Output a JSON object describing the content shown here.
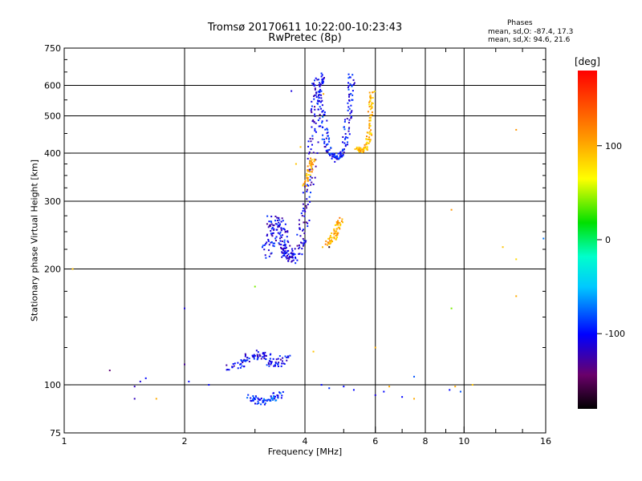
{
  "chart_data": {
    "type": "scatter",
    "title": "Tromsø 20170611 10:22:00-10:23:43",
    "subtitle": "RwPretec (8p)",
    "xlabel": "Frequency [MHz]",
    "ylabel": "Stationary phase Virtual Height [km]",
    "x_scale": "log",
    "y_scale": "log",
    "xlim": [
      1,
      16
    ],
    "ylim": [
      75,
      750
    ],
    "x_ticks": [
      1,
      2,
      4,
      6,
      8,
      10,
      16
    ],
    "x_tick_labels": [
      "1",
      "2",
      "4",
      "6",
      "8",
      "10",
      "16"
    ],
    "x_minor_ticks": [
      3,
      5,
      7,
      9,
      12,
      14
    ],
    "y_ticks": [
      75,
      100,
      200,
      300,
      400,
      500,
      600,
      750
    ],
    "y_tick_labels": [
      "75",
      "100",
      "200",
      "300",
      "400",
      "500",
      "600",
      "750"
    ],
    "grid_x": [
      2,
      4,
      6,
      8,
      10
    ],
    "grid_y": [
      100,
      200,
      300,
      400,
      500,
      600
    ],
    "grid": true,
    "colorbar": {
      "label": "[deg]",
      "range": [
        -180,
        180
      ],
      "ticks": [
        100,
        0,
        -100
      ],
      "tick_labels": [
        "100",
        "0",
        "-100"
      ]
    },
    "stats": {
      "header": "Phases",
      "line_o": "mean, sd,O:  -87.4, 17.3",
      "line_x": "mean, sd,X:  94.6, 21.6"
    },
    "colors": {
      "o_mode": "#1a3fe6",
      "x_mode": "#f2a800"
    },
    "series": [
      {
        "traces": [
          {
            "f": [
              3.3,
              3.5,
              3.7,
              3.9,
              4.0,
              4.1,
              4.2,
              4.25,
              4.3,
              4.35
            ],
            "h": [
              270,
              230,
              210,
              230,
              270,
              330,
              420,
              520,
              600,
              640
            ],
            "phase": -110,
            "spread": 0.06
          },
          {
            "f": [
              3.2,
              3.3,
              3.4,
              3.5,
              3.6,
              3.7
            ],
            "h": [
              215,
              245,
              270,
              250,
              225,
              210
            ],
            "phase": -105,
            "spread": 0.07
          },
          {
            "f": [
              4.3,
              4.4,
              4.5,
              4.6,
              4.8,
              5.0,
              5.1,
              5.2,
              5.25
            ],
            "h": [
              600,
              520,
              440,
              400,
              385,
              400,
              470,
              560,
              640
            ],
            "phase": -100,
            "spread": 0.04
          },
          {
            "f": [
              5.4,
              5.55,
              5.7,
              5.8,
              5.85,
              5.9
            ],
            "h": [
              410,
              405,
              415,
              450,
              520,
              580
            ],
            "phase": 95,
            "spread": 0.03
          },
          {
            "f": [
              4.5,
              4.7,
              4.8,
              4.9
            ],
            "h": [
              230,
              240,
              255,
              270
            ],
            "phase": 100,
            "spread": 0.04
          },
          {
            "f": [
              4.0,
              4.1,
              4.2
            ],
            "h": [
              330,
              360,
              390
            ],
            "phase": 100,
            "spread": 0.03
          },
          {
            "f": [
              2.6,
              2.8,
              3.0,
              3.2,
              3.4,
              3.6
            ],
            "h": [
              110,
              115,
              120,
              118,
              112,
              120
            ],
            "phase": -105,
            "spread": 0.06
          },
          {
            "f": [
              2.9,
              3.1,
              3.3,
              3.5
            ],
            "h": [
              93,
              90,
              92,
              95
            ],
            "phase": -90,
            "spread": 0.05
          }
        ],
        "scatter": [
          {
            "f": 1.05,
            "h": 200,
            "phase": 90
          },
          {
            "f": 1.3,
            "h": 109,
            "phase": -140
          },
          {
            "f": 1.5,
            "h": 99,
            "phase": -120
          },
          {
            "f": 1.55,
            "h": 102,
            "phase": -110
          },
          {
            "f": 1.6,
            "h": 104,
            "phase": -100
          },
          {
            "f": 1.5,
            "h": 92,
            "phase": -120
          },
          {
            "f": 1.7,
            "h": 92,
            "phase": 100
          },
          {
            "f": 2.0,
            "h": 158,
            "phase": -110
          },
          {
            "f": 2.0,
            "h": 113,
            "phase": -130
          },
          {
            "f": 2.05,
            "h": 102,
            "phase": -100
          },
          {
            "f": 2.3,
            "h": 100,
            "phase": -100
          },
          {
            "f": 4.4,
            "h": 100,
            "phase": -100
          },
          {
            "f": 4.6,
            "h": 98,
            "phase": -90
          },
          {
            "f": 5.0,
            "h": 99,
            "phase": -100
          },
          {
            "f": 5.3,
            "h": 97,
            "phase": -100
          },
          {
            "f": 6.0,
            "h": 94,
            "phase": -110
          },
          {
            "f": 6.3,
            "h": 96,
            "phase": -100
          },
          {
            "f": 6.5,
            "h": 99,
            "phase": 100
          },
          {
            "f": 7.0,
            "h": 93,
            "phase": -100
          },
          {
            "f": 7.5,
            "h": 92,
            "phase": 100
          },
          {
            "f": 7.5,
            "h": 105,
            "phase": -80
          },
          {
            "f": 9.2,
            "h": 97,
            "phase": -100
          },
          {
            "f": 9.5,
            "h": 99,
            "phase": 100
          },
          {
            "f": 9.8,
            "h": 96,
            "phase": -80
          },
          {
            "f": 9.3,
            "h": 285,
            "phase": 110
          },
          {
            "f": 9.3,
            "h": 158,
            "phase": 40
          },
          {
            "f": 10.5,
            "h": 100,
            "phase": 90
          },
          {
            "f": 13.5,
            "h": 460,
            "phase": 110
          },
          {
            "f": 13.5,
            "h": 212,
            "phase": 80
          },
          {
            "f": 13.5,
            "h": 170,
            "phase": 100
          },
          {
            "f": 12.5,
            "h": 228,
            "phase": 90
          },
          {
            "f": 15.8,
            "h": 240,
            "phase": -70
          },
          {
            "f": 6.0,
            "h": 125,
            "phase": 100
          },
          {
            "f": 4.2,
            "h": 122,
            "phase": 90
          },
          {
            "f": 3.0,
            "h": 180,
            "phase": 40
          },
          {
            "f": 3.7,
            "h": 580,
            "phase": -110
          },
          {
            "f": 4.45,
            "h": 570,
            "phase": 100
          },
          {
            "f": 4.6,
            "h": 228,
            "phase": -170
          },
          {
            "f": 3.9,
            "h": 415,
            "phase": 90
          },
          {
            "f": 3.8,
            "h": 375,
            "phase": 90
          }
        ]
      }
    ]
  }
}
